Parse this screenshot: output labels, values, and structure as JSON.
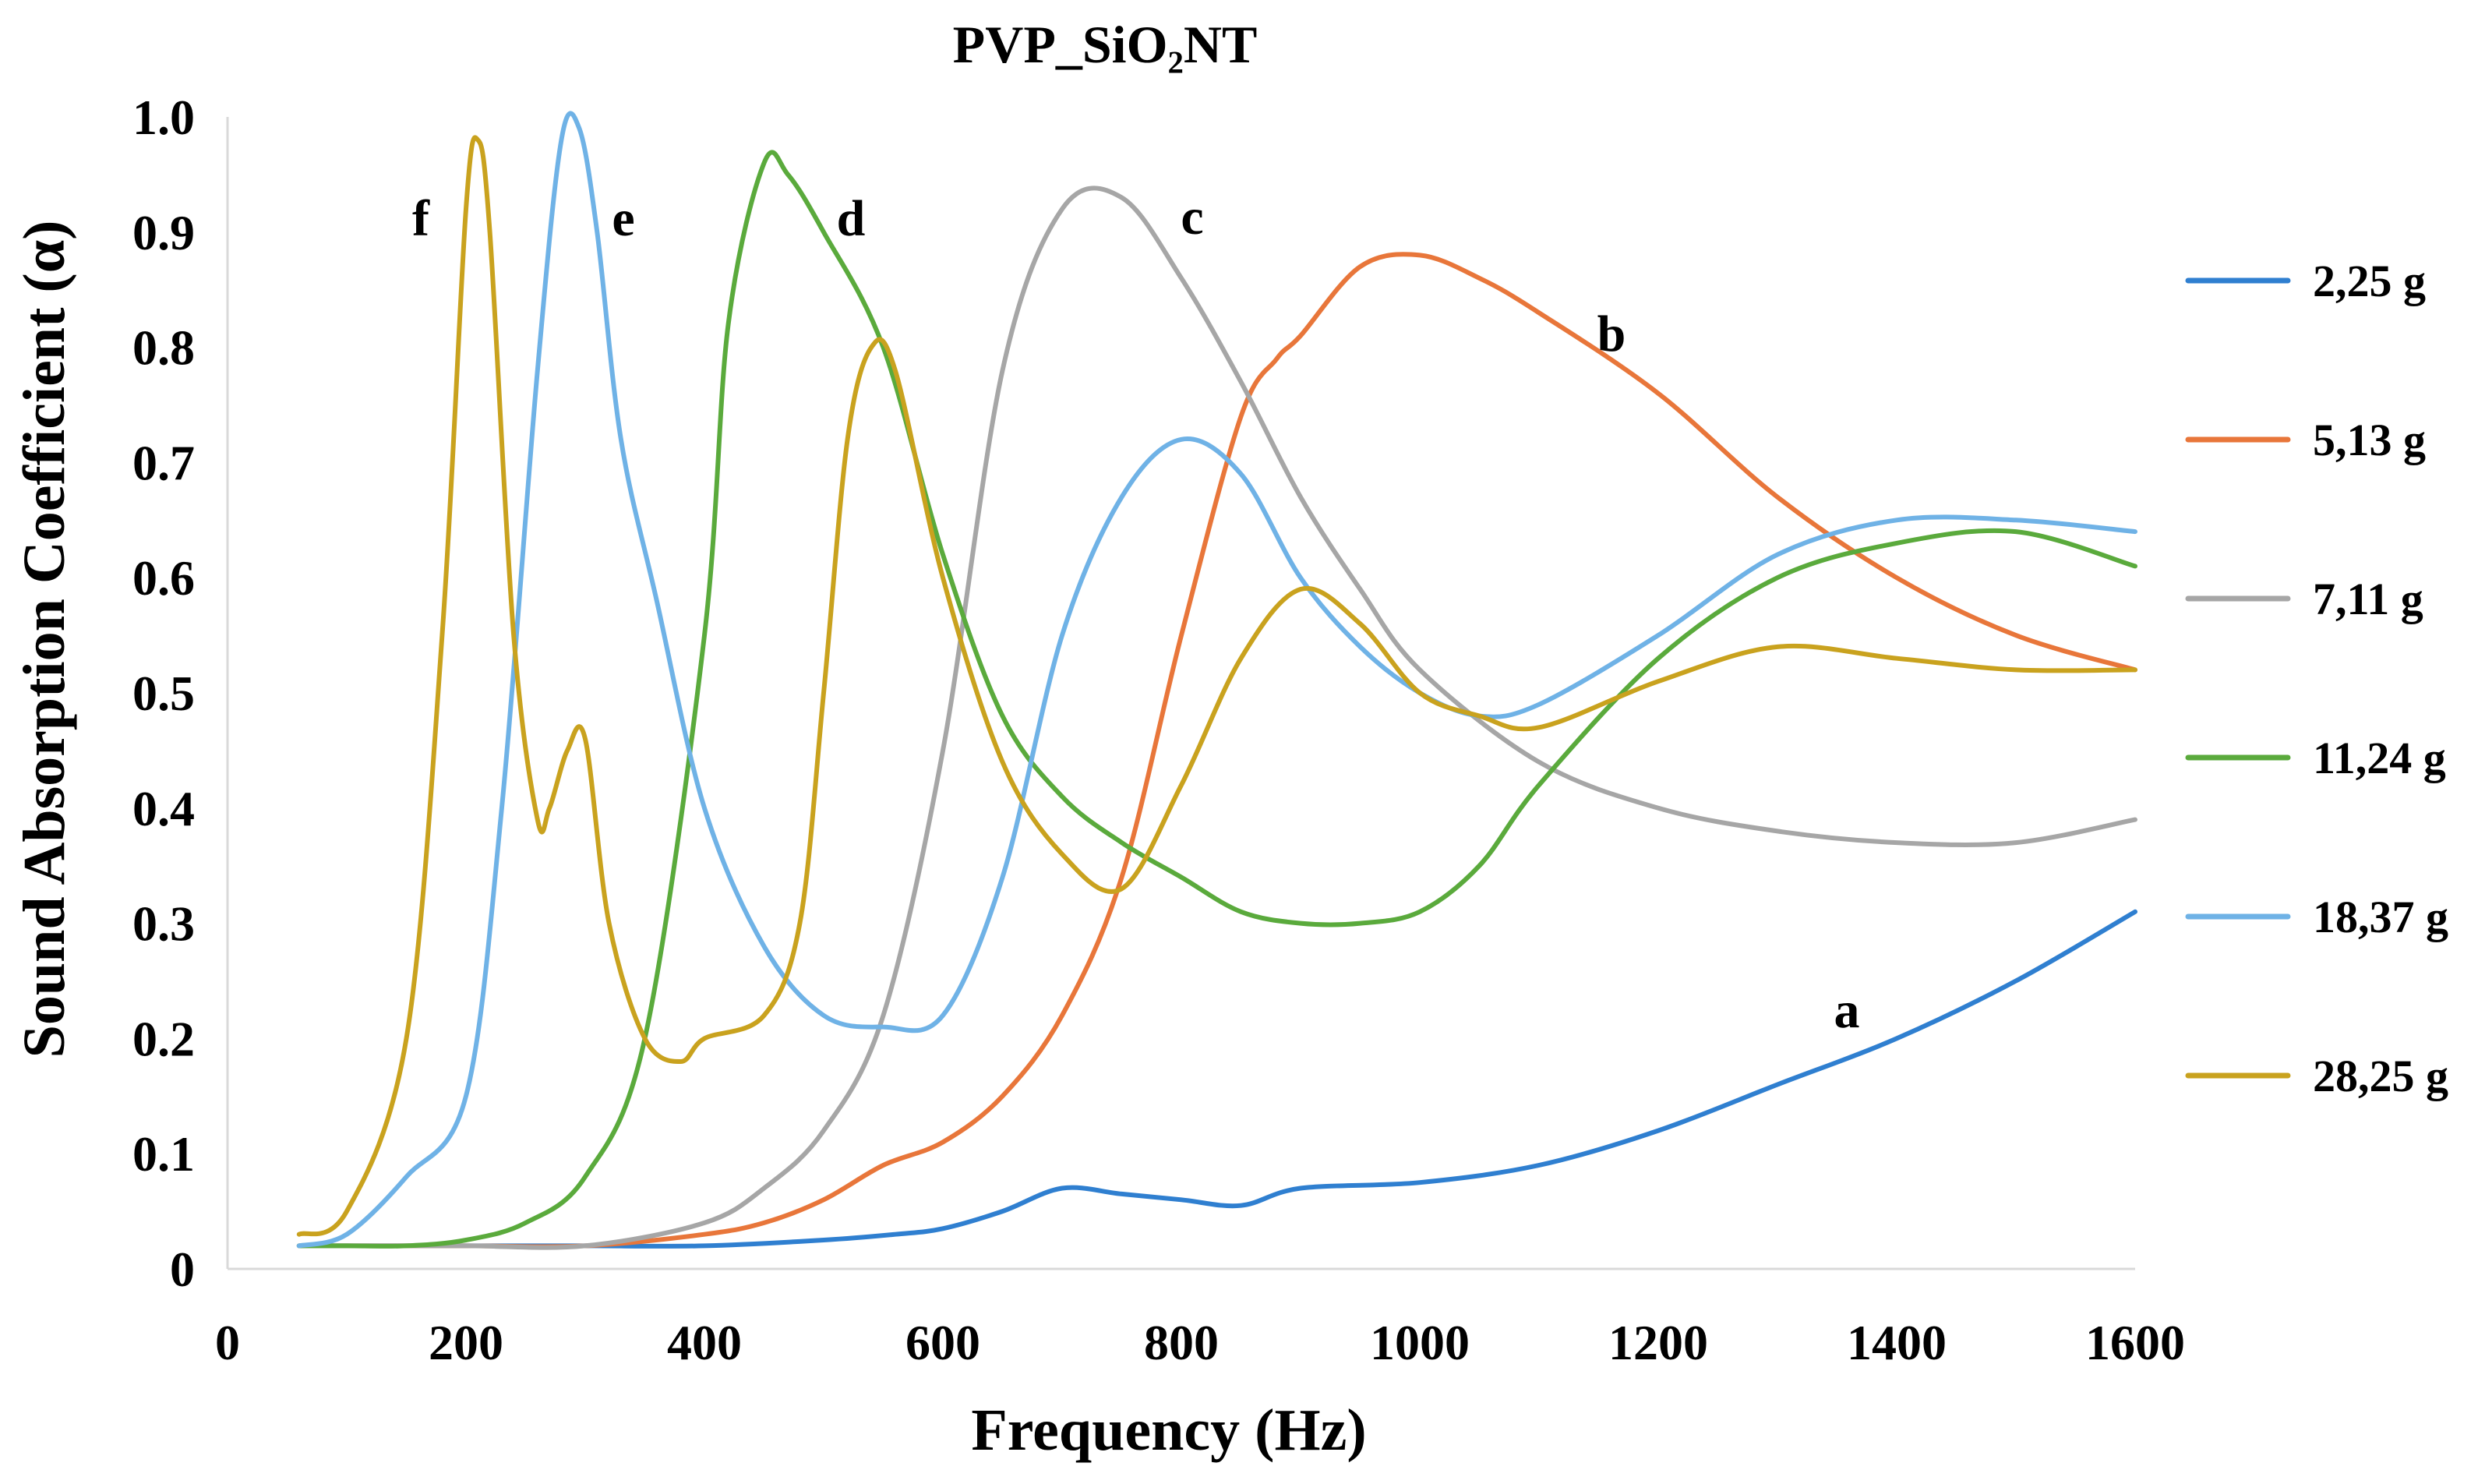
{
  "chart_data": {
    "type": "line",
    "title": "PVP_SiO₂NT",
    "xlabel": "Frequency (Hz)",
    "ylabel": "Sound Absorption Coefficient (α)",
    "xlim": [
      0,
      1600
    ],
    "ylim": [
      0,
      1.0
    ],
    "x_ticks": [
      "0",
      "200",
      "400",
      "600",
      "800",
      "1000",
      "1200",
      "1400",
      "1600"
    ],
    "y_ticks": [
      "0",
      "0.1",
      "0.2",
      "0.3",
      "0.4",
      "0.5",
      "0.6",
      "0.7",
      "0.8",
      "0.9",
      "1.0"
    ],
    "grid": false,
    "legend_position": "right",
    "series": [
      {
        "name": "2,25 g",
        "curve_label": "a",
        "color": "#2f7fd0",
        "x": [
          60,
          100,
          200,
          300,
          400,
          500,
          560,
          600,
          650,
          700,
          750,
          800,
          850,
          900,
          1000,
          1100,
          1200,
          1300,
          1400,
          1500,
          1600
        ],
        "y": [
          0.02,
          0.02,
          0.02,
          0.02,
          0.02,
          0.025,
          0.03,
          0.035,
          0.05,
          0.07,
          0.065,
          0.06,
          0.055,
          0.07,
          0.075,
          0.09,
          0.12,
          0.16,
          0.2,
          0.25,
          0.31
        ]
      },
      {
        "name": "5,13 g",
        "curve_label": "b",
        "color": "#e8763a",
        "x": [
          60,
          100,
          200,
          300,
          400,
          450,
          500,
          550,
          600,
          650,
          700,
          750,
          800,
          850,
          880,
          900,
          950,
          1000,
          1050,
          1100,
          1200,
          1300,
          1400,
          1500,
          1600
        ],
        "y": [
          0.02,
          0.02,
          0.02,
          0.02,
          0.03,
          0.04,
          0.06,
          0.09,
          0.11,
          0.15,
          0.22,
          0.34,
          0.55,
          0.74,
          0.79,
          0.81,
          0.87,
          0.88,
          0.86,
          0.83,
          0.76,
          0.67,
          0.6,
          0.55,
          0.52
        ]
      },
      {
        "name": "7,11 g",
        "curve_label": "c",
        "color": "#a6a6a6",
        "x": [
          60,
          100,
          200,
          300,
          400,
          450,
          500,
          550,
          600,
          650,
          700,
          750,
          800,
          850,
          900,
          950,
          1000,
          1100,
          1200,
          1300,
          1400,
          1500,
          1600
        ],
        "y": [
          0.02,
          0.02,
          0.02,
          0.02,
          0.04,
          0.07,
          0.12,
          0.22,
          0.45,
          0.78,
          0.92,
          0.93,
          0.86,
          0.77,
          0.67,
          0.59,
          0.52,
          0.44,
          0.4,
          0.38,
          0.37,
          0.37,
          0.39
        ]
      },
      {
        "name": "11,24 g",
        "curve_label": "d",
        "color": "#5aaa3c",
        "x": [
          60,
          100,
          150,
          200,
          250,
          300,
          350,
          400,
          420,
          450,
          470,
          500,
          550,
          600,
          650,
          700,
          750,
          800,
          850,
          900,
          950,
          1000,
          1050,
          1100,
          1200,
          1300,
          1400,
          1500,
          1600
        ],
        "y": [
          0.02,
          0.02,
          0.02,
          0.025,
          0.04,
          0.08,
          0.2,
          0.55,
          0.82,
          0.96,
          0.95,
          0.9,
          0.8,
          0.62,
          0.48,
          0.41,
          0.37,
          0.34,
          0.31,
          0.3,
          0.3,
          0.31,
          0.35,
          0.42,
          0.53,
          0.6,
          0.63,
          0.64,
          0.61
        ]
      },
      {
        "name": "18,37 g",
        "curve_label": "e",
        "color": "#6fb2e6",
        "x": [
          60,
          100,
          150,
          200,
          230,
          260,
          280,
          295,
          310,
          330,
          360,
          400,
          450,
          500,
          550,
          600,
          650,
          700,
          750,
          800,
          850,
          900,
          950,
          1000,
          1050,
          1100,
          1200,
          1300,
          1400,
          1500,
          1600
        ],
        "y": [
          0.02,
          0.03,
          0.08,
          0.15,
          0.4,
          0.78,
          0.98,
          0.99,
          0.9,
          0.72,
          0.58,
          0.4,
          0.28,
          0.22,
          0.21,
          0.22,
          0.34,
          0.55,
          0.67,
          0.72,
          0.69,
          0.6,
          0.54,
          0.5,
          0.48,
          0.49,
          0.55,
          0.62,
          0.65,
          0.65,
          0.64
        ]
      },
      {
        "name": "28,25 g",
        "curve_label": "f",
        "color": "#c9a21e",
        "x": [
          60,
          100,
          150,
          180,
          200,
          210,
          220,
          240,
          260,
          270,
          285,
          300,
          320,
          350,
          380,
          400,
          450,
          480,
          500,
          520,
          540,
          560,
          600,
          650,
          700,
          750,
          800,
          850,
          900,
          950,
          1000,
          1050,
          1100,
          1200,
          1300,
          1400,
          1500,
          1600
        ],
        "y": [
          0.03,
          0.05,
          0.2,
          0.55,
          0.92,
          0.98,
          0.9,
          0.55,
          0.39,
          0.4,
          0.45,
          0.46,
          0.3,
          0.2,
          0.18,
          0.2,
          0.22,
          0.3,
          0.5,
          0.72,
          0.8,
          0.78,
          0.6,
          0.44,
          0.36,
          0.33,
          0.42,
          0.53,
          0.59,
          0.56,
          0.5,
          0.48,
          0.47,
          0.51,
          0.54,
          0.53,
          0.52,
          0.52
        ]
      }
    ]
  }
}
